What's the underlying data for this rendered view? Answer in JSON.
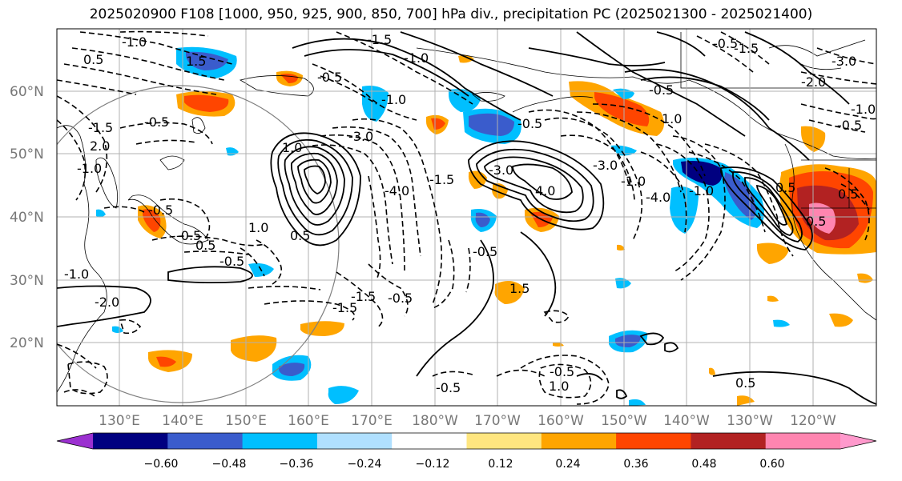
{
  "title": "2025020900 F108 [1000, 950, 925, 900, 850, 700] hPa div., precipitation PC (2025021300 - 2025021400)",
  "map": {
    "lat_labels": [
      "60°N",
      "50°N",
      "40°N",
      "30°N",
      "20°N"
    ],
    "lon_labels": [
      "130°E",
      "140°E",
      "150°E",
      "160°E",
      "170°E",
      "180°W",
      "170°W",
      "160°W",
      "150°W",
      "140°W",
      "130°W",
      "120°W"
    ],
    "contour_labels": [
      "-1.0",
      "0.5",
      "1.5",
      "-0.5",
      "-1.5",
      "2.0",
      "-3.0",
      "-2.0",
      "-1.0",
      "-0.5",
      "-0.5",
      "-1.5",
      "-3.0",
      "1.0",
      "-1.0",
      "-0.5",
      "-0.5",
      "0.5",
      "1.0",
      "-1.0",
      "-2.0",
      "-4.0",
      "-1.5",
      "-3.0",
      "4.0",
      "-3.0",
      "1.0",
      "-4.0",
      "-1.0",
      "0.5",
      "-0.5",
      "0.5",
      "-1.5",
      "1.5",
      "-0.5",
      "-1.5",
      "-0.5",
      "-0.5",
      "1.0",
      "0.5",
      "-1.0",
      "-0.5",
      "0.5",
      "-1.0",
      "-0.5",
      "-0.5",
      "-1.5",
      "-0.5",
      "-1.0",
      "0.5"
    ]
  },
  "colorbar": {
    "ticks": [
      "−0.60",
      "−0.48",
      "−0.36",
      "−0.24",
      "−0.12",
      "0.12",
      "0.24",
      "0.36",
      "0.48",
      "0.60"
    ],
    "colors": [
      "#9b30d0",
      "#000080",
      "#3a5ccc",
      "#00bfff",
      "#b0e0ff",
      "#ffffff",
      "#ffe680",
      "#ffa500",
      "#ff4500",
      "#b22222",
      "#ff85b0",
      "#ff99cc"
    ]
  }
}
